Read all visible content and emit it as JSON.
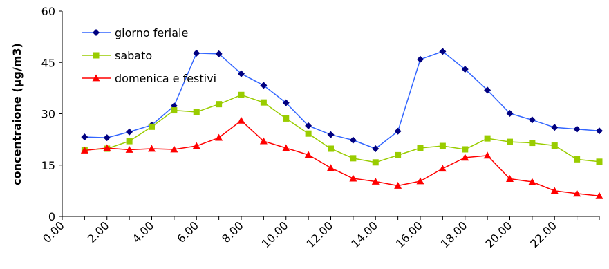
{
  "chart_data": {
    "type": "line",
    "title": "",
    "xlabel": "",
    "ylabel": "concentraione (µg/m3)",
    "ylim": [
      0,
      60
    ],
    "yticks": [
      "0",
      "15",
      "30",
      "45",
      "60"
    ],
    "xlim": [
      0,
      24
    ],
    "xticks": [
      "0.00",
      "2.00",
      "4.00",
      "6.00",
      "8.00",
      "10.00",
      "12.00",
      "14.00",
      "16.00",
      "18.00",
      "20.00",
      "22.00"
    ],
    "x": [
      1,
      2,
      3,
      4,
      5,
      6,
      7,
      8,
      9,
      10,
      11,
      12,
      13,
      14,
      15,
      16,
      17,
      18,
      19,
      20,
      21,
      22,
      23,
      24
    ],
    "grid": false,
    "legend_position": "top-left",
    "series": [
      {
        "name": "giorno feriale",
        "color": "#3366ff",
        "marker": "diamond",
        "marker_color": "#000080",
        "values": [
          23.2,
          23,
          24.7,
          26.7,
          32.3,
          47.7,
          47.5,
          41.7,
          38.3,
          33.2,
          26.5,
          23.9,
          22.3,
          19.8,
          24.9,
          45.9,
          48.2,
          43,
          36.9,
          30.1,
          28.2,
          26,
          25.5,
          25
        ]
      },
      {
        "name": "sabato",
        "color": "#99cc00",
        "marker": "square",
        "marker_color": "#99cc00",
        "values": [
          19.5,
          19.8,
          22,
          26.2,
          31,
          30.5,
          32.8,
          35.5,
          33.3,
          28.6,
          24.2,
          19.8,
          17,
          15.8,
          17.9,
          20,
          20.6,
          19.6,
          22.8,
          21.8,
          21.5,
          20.7,
          16.7,
          16
        ]
      },
      {
        "name": "domenica e festivi",
        "color": "#ff0000",
        "marker": "triangle",
        "marker_color": "#ff0000",
        "values": [
          19.3,
          20,
          19.5,
          19.8,
          19.6,
          20.6,
          23,
          28,
          22,
          20,
          18,
          14.2,
          11.1,
          10.2,
          9,
          10.3,
          14,
          17.2,
          17.8,
          11,
          10.1,
          7.5,
          6.7,
          6
        ]
      }
    ]
  }
}
